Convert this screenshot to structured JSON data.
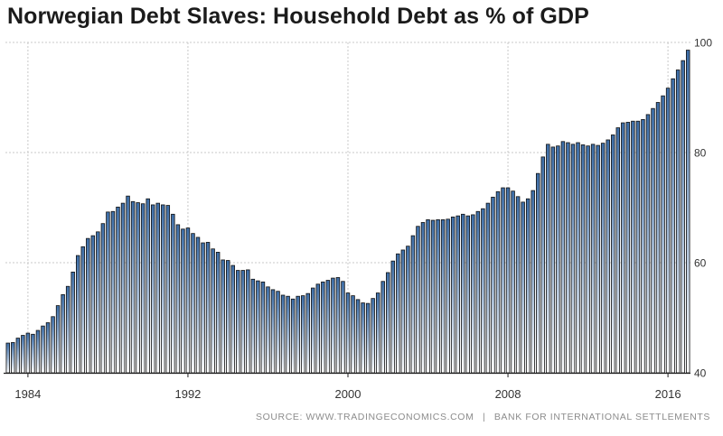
{
  "title": "Norwegian Debt Slaves: Household Debt as % of GDP",
  "source": {
    "left": "SOURCE: WWW.TRADINGECONOMICS.COM",
    "separator": "|",
    "right": "BANK FOR INTERNATIONAL SETTLEMENTS"
  },
  "colors": {
    "bar_top": "#3d6ea8",
    "bar_bottom": "#ffffff",
    "bar_outline": "#111111",
    "grid": "#c8c8c8",
    "axis": "#222222",
    "tick_text": "#333333"
  },
  "chart_data": {
    "type": "bar",
    "title": "Norwegian Debt Slaves: Household Debt as % of GDP",
    "xlabel": "",
    "ylabel": "",
    "frequency": "quarterly",
    "x_start": "1983-Q1",
    "x_tick_labels": [
      "1984",
      "1992",
      "2000",
      "2008",
      "2016"
    ],
    "y_tick_labels": [
      "40",
      "60",
      "80",
      "100"
    ],
    "ylim": [
      40,
      100
    ],
    "grid": true,
    "values": [
      45.4,
      45.5,
      46.3,
      46.8,
      47.2,
      47.0,
      47.7,
      48.5,
      49.1,
      50.2,
      52.2,
      54.2,
      55.7,
      58.3,
      61.3,
      62.9,
      64.4,
      64.9,
      65.6,
      67.1,
      69.2,
      69.3,
      70.1,
      70.8,
      72.1,
      71.1,
      70.9,
      70.7,
      71.6,
      70.5,
      70.8,
      70.5,
      70.4,
      68.8,
      66.9,
      66.1,
      66.3,
      65.3,
      64.6,
      63.6,
      63.7,
      62.5,
      61.9,
      60.5,
      60.4,
      59.5,
      58.6,
      58.6,
      58.7,
      57.0,
      56.7,
      56.5,
      55.6,
      55.1,
      54.8,
      54.1,
      53.9,
      53.4,
      53.9,
      54.0,
      54.4,
      55.4,
      56.1,
      56.5,
      56.8,
      57.2,
      57.3,
      56.6,
      54.5,
      54.0,
      53.3,
      52.7,
      52.6,
      53.5,
      54.5,
      56.6,
      58.2,
      60.3,
      61.6,
      62.3,
      63.0,
      64.9,
      66.6,
      67.3,
      67.8,
      67.7,
      67.8,
      67.8,
      67.9,
      68.3,
      68.5,
      68.8,
      68.5,
      68.7,
      69.3,
      69.8,
      70.8,
      71.9,
      72.9,
      73.6,
      73.6,
      73.0,
      72.0,
      71.0,
      71.6,
      73.1,
      76.2,
      79.2,
      81.5,
      81.0,
      81.2,
      82.0,
      81.8,
      81.5,
      81.8,
      81.4,
      81.2,
      81.5,
      81.3,
      81.7,
      82.3,
      83.2,
      84.5,
      85.4,
      85.5,
      85.7,
      85.7,
      86.0,
      86.9,
      88.0,
      89.1,
      90.3,
      91.7,
      93.4,
      95.0,
      96.7,
      98.6
    ]
  }
}
